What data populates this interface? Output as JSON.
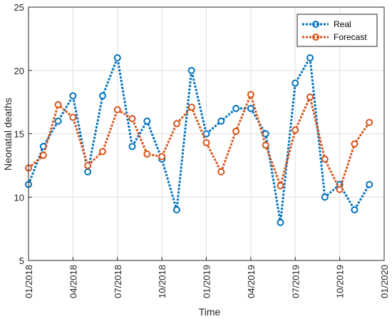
{
  "chart_data": {
    "type": "line",
    "xlabel": "Time",
    "ylabel": "Neonatal deaths",
    "ylim": [
      5,
      25
    ],
    "y_ticks": [
      "5",
      "10",
      "15",
      "20",
      "25"
    ],
    "x_ticks": [
      "01/2018",
      "04/2018",
      "07/2018",
      "10/2018",
      "01/2019",
      "04/2019",
      "07/2019",
      "10/2019",
      "01/2020"
    ],
    "x_range": [
      "01/2018",
      "01/2020"
    ],
    "grid": true,
    "legend_position": "top-right",
    "x": [
      "01/2018",
      "02/2018",
      "03/2018",
      "04/2018",
      "05/2018",
      "06/2018",
      "07/2018",
      "08/2018",
      "09/2018",
      "10/2018",
      "11/2018",
      "12/2018",
      "01/2019",
      "02/2019",
      "03/2019",
      "04/2019",
      "05/2019",
      "06/2019",
      "07/2019",
      "08/2019",
      "09/2019",
      "10/2019",
      "11/2019",
      "12/2019"
    ],
    "series": [
      {
        "name": "Real",
        "color": "#0072BD",
        "values": [
          11,
          14,
          16,
          18,
          12,
          18,
          21,
          14,
          16,
          13,
          9,
          20,
          15,
          16,
          17,
          17,
          15,
          8,
          19,
          21,
          10,
          11,
          9,
          11
        ]
      },
      {
        "name": "Forecast",
        "color": "#D95319",
        "values": [
          12.3,
          13.3,
          17.3,
          16.3,
          12.5,
          13.6,
          16.9,
          16.2,
          13.4,
          13.2,
          15.8,
          17.1,
          14.3,
          12.0,
          15.2,
          18.1,
          14.1,
          10.9,
          15.3,
          17.9,
          13.0,
          10.6,
          14.2,
          15.9
        ]
      }
    ]
  }
}
